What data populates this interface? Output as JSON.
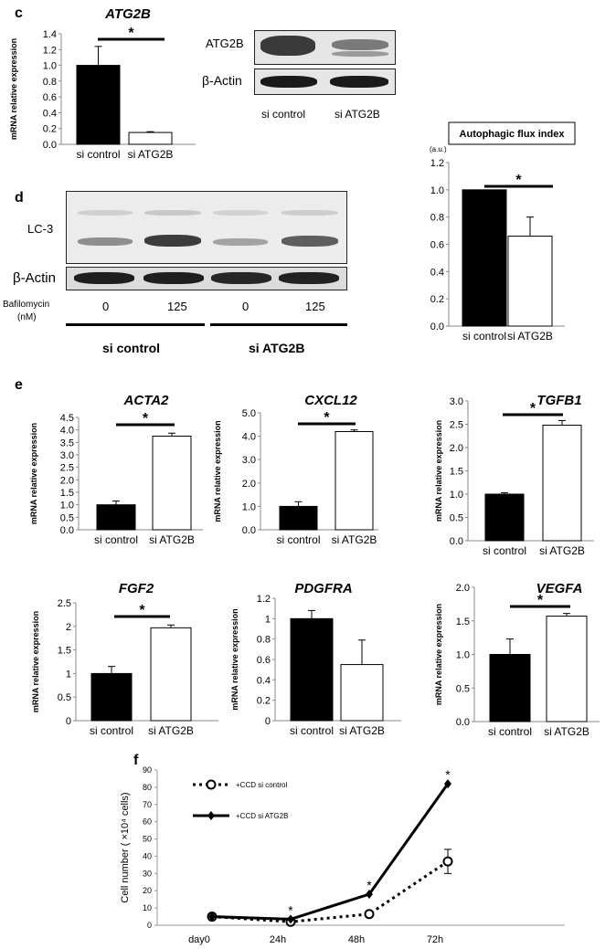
{
  "panels": {
    "c": "c",
    "d": "d",
    "e": "e",
    "f": "f"
  },
  "blot_c": {
    "row1": "ATG2B",
    "row2": "β-Actin",
    "lane1": "si control",
    "lane2": "si ATG2B"
  },
  "blot_d": {
    "row1": "LC-3",
    "row2": "β-Actin",
    "treatment_line1": "Bafilomycin",
    "treatment_line2": "(nM)",
    "doses": [
      "0",
      "125",
      "0",
      "125"
    ],
    "group1": "si control",
    "group2": "si ATG2B"
  },
  "chart_data": [
    {
      "id": "c-atg2b",
      "type": "bar",
      "title": "ATG2B",
      "ylabel": "mRNA relative expression",
      "categories": [
        "si control",
        "si ATG2B"
      ],
      "values": [
        1.0,
        0.15
      ],
      "errors": [
        0.24,
        0.01
      ],
      "ylim": [
        0,
        1.4
      ],
      "yticks": [
        "0.0",
        "0.2",
        "0.4",
        "0.6",
        "0.8",
        "1.0",
        "1.2",
        "1.4"
      ],
      "significance": "*"
    },
    {
      "id": "d-flux",
      "type": "bar",
      "title": "Autophagic flux index",
      "unit": "(a.u.)",
      "categories": [
        "si control",
        "si ATG2B"
      ],
      "values": [
        1.0,
        0.66
      ],
      "errors": [
        0.0,
        0.14
      ],
      "ylim": [
        0,
        1.2
      ],
      "yticks": [
        "0.0",
        "0.2",
        "0.4",
        "0.6",
        "0.8",
        "1.0",
        "1.2"
      ],
      "significance": "*"
    },
    {
      "id": "e-acta2",
      "type": "bar",
      "title": "ACTA2",
      "ylabel": "mRNA relative expression",
      "categories": [
        "si control",
        "si ATG2B"
      ],
      "values": [
        1.0,
        3.75
      ],
      "errors": [
        0.15,
        0.12
      ],
      "ylim": [
        0,
        4.5
      ],
      "yticks": [
        "0.0",
        "0.5",
        "1.0",
        "1.5",
        "2.0",
        "2.5",
        "3.0",
        "3.5",
        "4.0",
        "4.5"
      ],
      "significance": "*"
    },
    {
      "id": "e-cxcl12",
      "type": "bar",
      "title": "CXCL12",
      "ylabel": "mRNA relative expression",
      "categories": [
        "si control",
        "si ATG2B"
      ],
      "values": [
        1.0,
        4.2
      ],
      "errors": [
        0.2,
        0.07
      ],
      "ylim": [
        0,
        5.0
      ],
      "yticks": [
        "0.0",
        "1.0",
        "2.0",
        "3.0",
        "4.0",
        "5.0"
      ],
      "significance": "*"
    },
    {
      "id": "e-tgfb1",
      "type": "bar",
      "title": "TGFB1",
      "ylabel": "mRNA relative expression",
      "categories": [
        "si control",
        "si ATG2B"
      ],
      "values": [
        1.0,
        2.48
      ],
      "errors": [
        0.03,
        0.1
      ],
      "ylim": [
        0,
        3.0
      ],
      "yticks": [
        "0.0",
        "0.5",
        "1.0",
        "1.5",
        "2.0",
        "2.5",
        "3.0"
      ],
      "significance": "*"
    },
    {
      "id": "e-fgf2",
      "type": "bar",
      "title": "FGF2",
      "ylabel": "mRNA relative expression",
      "categories": [
        "si control",
        "si ATG2B"
      ],
      "values": [
        1.0,
        1.97
      ],
      "errors": [
        0.15,
        0.06
      ],
      "ylim": [
        0,
        2.5
      ],
      "yticks": [
        "0",
        "0.5",
        "1",
        "1.5",
        "2",
        "2.5"
      ],
      "significance": "*"
    },
    {
      "id": "e-pdgfra",
      "type": "bar",
      "title": "PDGFRA",
      "ylabel": "mRNA relative expression",
      "categories": [
        "si control",
        "si ATG2B"
      ],
      "values": [
        1.0,
        0.55
      ],
      "errors": [
        0.08,
        0.24
      ],
      "ylim": [
        0,
        1.2
      ],
      "yticks": [
        "0",
        "0.2",
        "0.4",
        "0.6",
        "0.8",
        "1",
        "1.2"
      ],
      "significance": ""
    },
    {
      "id": "e-vegfa",
      "type": "bar",
      "title": "VEGFA",
      "ylabel": "mRNA relative expression",
      "categories": [
        "si control",
        "si ATG2B"
      ],
      "values": [
        1.0,
        1.57
      ],
      "errors": [
        0.23,
        0.04
      ],
      "ylim": [
        0,
        2.0
      ],
      "yticks": [
        "0.0",
        "0.5",
        "1.0",
        "1.5",
        "2.0"
      ],
      "significance": "*"
    },
    {
      "id": "f-growth",
      "type": "line",
      "ylabel": "Cell number ( ×10⁴ cells)",
      "categories": [
        "day0",
        "24h",
        "48h",
        "72h"
      ],
      "ylim": [
        0,
        90
      ],
      "yticks": [
        "0",
        "10",
        "20",
        "30",
        "40",
        "50",
        "60",
        "70",
        "80",
        "90"
      ],
      "legend_position": "top-left",
      "series": [
        {
          "name": "+CCD si control",
          "values": [
            5,
            2,
            6.5,
            37
          ],
          "errors": [
            0,
            0,
            0,
            7
          ],
          "marker": "open-circle",
          "dash": "dotted"
        },
        {
          "name": "+CCD si ATG2B",
          "values": [
            5,
            3.5,
            18,
            82
          ],
          "errors": [
            0,
            0,
            0,
            0
          ],
          "marker": "diamond",
          "dash": "solid"
        }
      ],
      "significance": [
        "",
        "*",
        "*",
        "*"
      ]
    }
  ]
}
